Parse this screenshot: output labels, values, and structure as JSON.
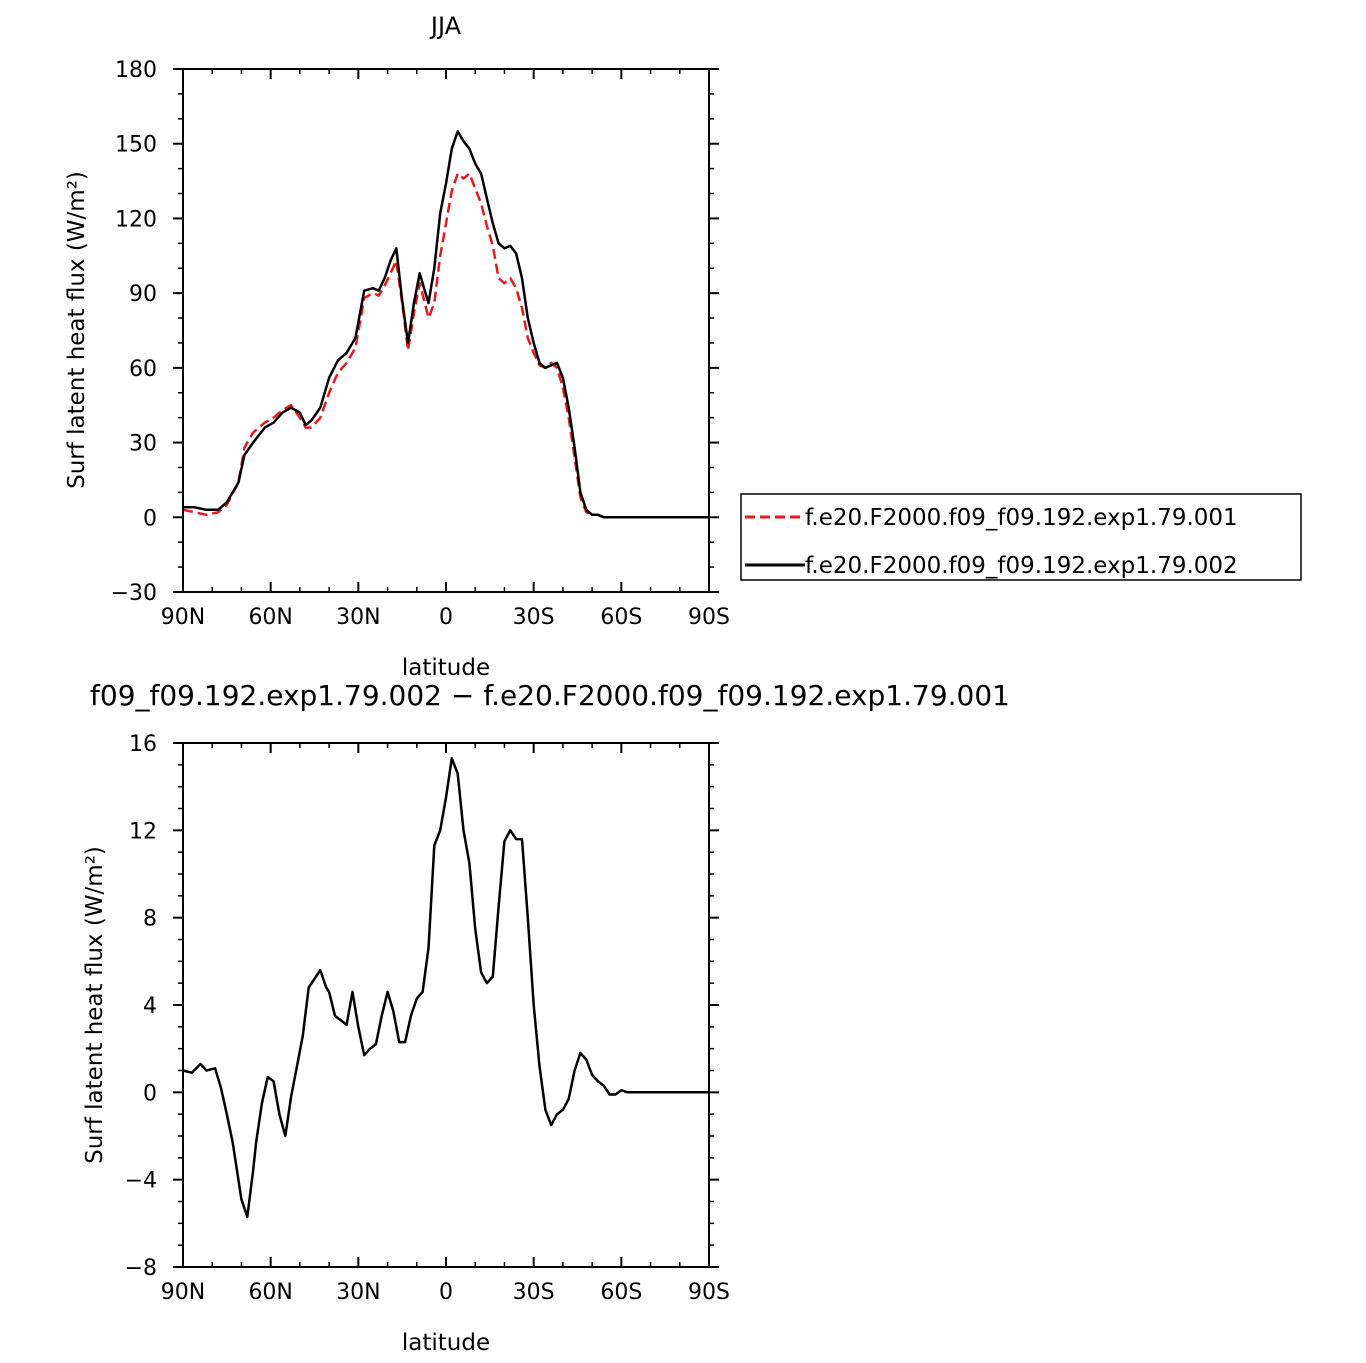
{
  "chart_data": [
    {
      "type": "line",
      "title": "JJA",
      "xlabel": "latitude",
      "ylabel": "Surf latent heat flux (W/m²)",
      "x_ticks": [
        "90N",
        "60N",
        "30N",
        "0",
        "30S",
        "60S",
        "90S"
      ],
      "y_ticks": [
        "−30",
        "0",
        "30",
        "60",
        "90",
        "120",
        "150",
        "180"
      ],
      "xlim": [
        90,
        -90
      ],
      "ylim": [
        -30,
        180
      ],
      "legend_position": "right",
      "series": [
        {
          "name": "f.e20.F2000.f09_f09.192.exp1.79.001",
          "color": "#e41a1c",
          "dash": "dashed",
          "x": [
            90,
            86,
            82,
            78,
            75,
            71,
            69,
            66,
            62,
            59,
            56,
            53,
            50,
            48,
            46,
            43,
            40,
            37,
            34,
            31,
            28,
            25,
            23,
            21,
            19,
            17,
            15,
            13,
            11,
            9,
            7,
            6,
            4,
            2,
            0,
            -2,
            -4,
            -6,
            -8,
            -10,
            -12,
            -14,
            -16,
            -18,
            -20,
            -22,
            -24,
            -26,
            -28,
            -30,
            -32,
            -34,
            -36,
            -38,
            -40,
            -42,
            -44,
            -46,
            -48,
            -50,
            -52,
            -54,
            -56,
            -58,
            -60,
            -62,
            -64,
            -66,
            -68,
            -70,
            -72,
            -75,
            -78,
            -81,
            -84,
            -87,
            -90
          ],
          "y": [
            3,
            2,
            1,
            2,
            5,
            14,
            28,
            34,
            38,
            40,
            43,
            45,
            40,
            36,
            36,
            40,
            50,
            58,
            62,
            68,
            88,
            90,
            89,
            93,
            98,
            103,
            86,
            67,
            82,
            94,
            85,
            80,
            86,
            105,
            118,
            131,
            138,
            136,
            138,
            132,
            126,
            117,
            109,
            96,
            94,
            96,
            92,
            84,
            72,
            66,
            61,
            60,
            62,
            60,
            52,
            40,
            24,
            8,
            2,
            1,
            1,
            0,
            0,
            0,
            0,
            0,
            0,
            0,
            0,
            0,
            0,
            0,
            0,
            0,
            0,
            0,
            0
          ]
        },
        {
          "name": "f.e20.F2000.f09_f09.192.exp1.79.002",
          "color": "#000000",
          "dash": "solid",
          "x": [
            90,
            86,
            82,
            78,
            75,
            71,
            69,
            66,
            62,
            59,
            56,
            53,
            50,
            48,
            46,
            43,
            40,
            37,
            34,
            31,
            28,
            25,
            23,
            21,
            19,
            17,
            15,
            13,
            11,
            9,
            7,
            6,
            4,
            2,
            0,
            -2,
            -4,
            -6,
            -8,
            -10,
            -12,
            -14,
            -16,
            -18,
            -20,
            -22,
            -24,
            -26,
            -28,
            -30,
            -32,
            -34,
            -36,
            -38,
            -40,
            -42,
            -44,
            -46,
            -48,
            -50,
            -52,
            -54,
            -56,
            -58,
            -60,
            -62,
            -64,
            -66,
            -68,
            -70,
            -72,
            -75,
            -78,
            -81,
            -84,
            -87,
            -90
          ],
          "y": [
            4,
            4,
            3,
            3,
            6,
            14,
            25,
            30,
            36,
            38,
            42,
            44,
            42,
            37,
            39,
            44,
            56,
            63,
            66,
            72,
            91,
            92,
            91,
            96,
            103,
            108,
            87,
            70,
            86,
            98,
            90,
            86,
            100,
            122,
            134,
            148,
            155,
            151,
            148,
            142,
            138,
            128,
            118,
            110,
            108,
            109,
            106,
            96,
            80,
            70,
            62,
            60,
            61,
            62,
            56,
            44,
            28,
            10,
            3,
            1,
            1,
            0,
            0,
            0,
            0,
            0,
            0,
            0,
            0,
            0,
            0,
            0,
            0,
            0,
            0,
            0,
            0
          ]
        }
      ]
    },
    {
      "type": "line",
      "title": "f09_f09.192.exp1.79.002 − f.e20.F2000.f09_f09.192.exp1.79.001",
      "xlabel": "latitude",
      "ylabel": "Surf latent heat flux (W/m²)",
      "x_ticks": [
        "90N",
        "60N",
        "30N",
        "0",
        "30S",
        "60S",
        "90S"
      ],
      "y_ticks": [
        "−8",
        "−4",
        "0",
        "4",
        "8",
        "12",
        "16"
      ],
      "xlim": [
        90,
        -90
      ],
      "ylim": [
        -8,
        16
      ],
      "series": [
        {
          "color": "#000000",
          "dash": "solid",
          "x": [
            90,
            87,
            84,
            82,
            79,
            77,
            75,
            73,
            70,
            68,
            66,
            65,
            63,
            61,
            59,
            57,
            55,
            53,
            51,
            49,
            47,
            45,
            43,
            41,
            40,
            38,
            36,
            34,
            32,
            30,
            28,
            26,
            24,
            22,
            20,
            18,
            16,
            14,
            12,
            10,
            8,
            6,
            4,
            2,
            0,
            -2,
            -4,
            -6,
            -8,
            -10,
            -12,
            -14,
            -16,
            -18,
            -20,
            -22,
            -24,
            -26,
            -28,
            -30,
            -32,
            -34,
            -36,
            -38,
            -40,
            -42,
            -44,
            -46,
            -48,
            -50,
            -52,
            -54,
            -56,
            -58,
            -60,
            -62,
            -64,
            -66,
            -68,
            -70,
            -72,
            -75,
            -78,
            -81,
            -84,
            -87,
            -90
          ],
          "y": [
            1.0,
            0.9,
            1.3,
            1.0,
            1.1,
            0.2,
            -1.0,
            -2.3,
            -4.9,
            -5.7,
            -3.6,
            -2.3,
            -0.5,
            0.7,
            0.5,
            -1.0,
            -2.0,
            -0.2,
            1.2,
            2.6,
            4.8,
            5.2,
            5.6,
            4.8,
            4.6,
            3.5,
            3.3,
            3.1,
            4.6,
            3.0,
            1.7,
            2.0,
            2.2,
            3.5,
            4.6,
            3.7,
            2.3,
            2.3,
            3.5,
            4.3,
            4.6,
            6.6,
            11.3,
            12.0,
            13.5,
            15.3,
            14.6,
            12.0,
            10.5,
            7.5,
            5.5,
            5.0,
            5.3,
            8.5,
            11.5,
            12.0,
            11.6,
            11.6,
            8.0,
            4.0,
            1.2,
            -0.8,
            -1.5,
            -1.0,
            -0.8,
            -0.3,
            1.0,
            1.8,
            1.5,
            0.8,
            0.5,
            0.3,
            -0.1,
            -0.1,
            0.1,
            0.0,
            0.0,
            0.0,
            0.0,
            0.0,
            0.0,
            0.0,
            0.0,
            0.0,
            0.0,
            0.0,
            0.0
          ]
        }
      ]
    }
  ]
}
